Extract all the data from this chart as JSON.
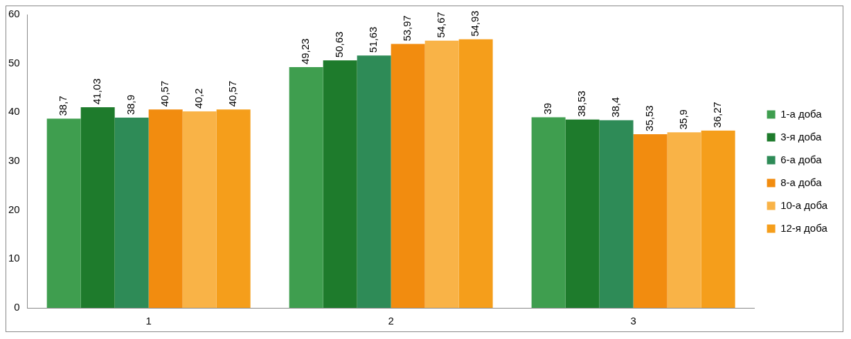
{
  "chart_data": {
    "type": "bar",
    "categories": [
      "1",
      "2",
      "3"
    ],
    "series": [
      {
        "name": "1-а доба",
        "color": "#3f9e4f",
        "values": [
          38.7,
          49.23,
          39
        ],
        "value_labels": [
          "38,7",
          "49,23",
          "39"
        ]
      },
      {
        "name": "3-я доба",
        "color": "#1e7b2c",
        "values": [
          41.03,
          50.63,
          38.53
        ],
        "value_labels": [
          "41,03",
          "50,63",
          "38,53"
        ]
      },
      {
        "name": "6-а доба",
        "color": "#2e8b57",
        "values": [
          38.9,
          51.63,
          38.4
        ],
        "value_labels": [
          "38,9",
          "51,63",
          "38,4"
        ]
      },
      {
        "name": "8-а доба",
        "color": "#f28c0f",
        "values": [
          40.57,
          53.97,
          35.53
        ],
        "value_labels": [
          "40,57",
          "53,97",
          "35,53"
        ]
      },
      {
        "name": "10-а доба",
        "color": "#f9b347",
        "values": [
          40.2,
          54.67,
          35.9
        ],
        "value_labels": [
          "40,2",
          "54,67",
          "35,9"
        ]
      },
      {
        "name": "12-я доба",
        "color": "#f59e1b",
        "values": [
          40.57,
          54.93,
          36.27
        ],
        "value_labels": [
          "40,57",
          "54,93",
          "36,27"
        ]
      }
    ],
    "ylim": [
      0,
      60
    ],
    "yticks": [
      0,
      10,
      20,
      30,
      40,
      50,
      60
    ],
    "grid": false,
    "legend": "right"
  }
}
